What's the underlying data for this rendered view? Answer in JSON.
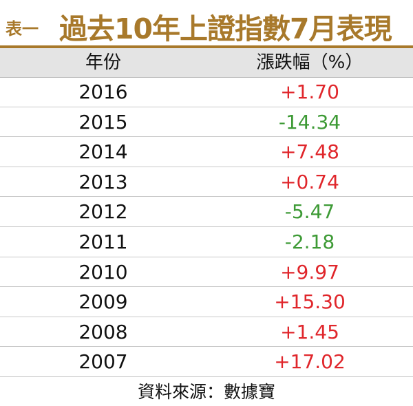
{
  "header": {
    "label": "表一",
    "title": "過去10年上證指數7月表現"
  },
  "table": {
    "columns": [
      "年份",
      "漲跌幅（%）"
    ],
    "rows": [
      [
        "2016",
        "+1.70"
      ],
      [
        "2015",
        "-14.34"
      ],
      [
        "2014",
        "+7.48"
      ],
      [
        "2013",
        "+0.74"
      ],
      [
        "2012",
        "-5.47"
      ],
      [
        "2011",
        "-2.18"
      ],
      [
        "2010",
        "+9.97"
      ],
      [
        "2009",
        "+15.30"
      ],
      [
        "2008",
        "+1.45"
      ],
      [
        "2007",
        "+17.02"
      ]
    ]
  },
  "source": "資料來源：數據寶",
  "colors": {
    "rise": "#e0262b",
    "fall": "#3d9a35",
    "title": "#a8792b"
  }
}
